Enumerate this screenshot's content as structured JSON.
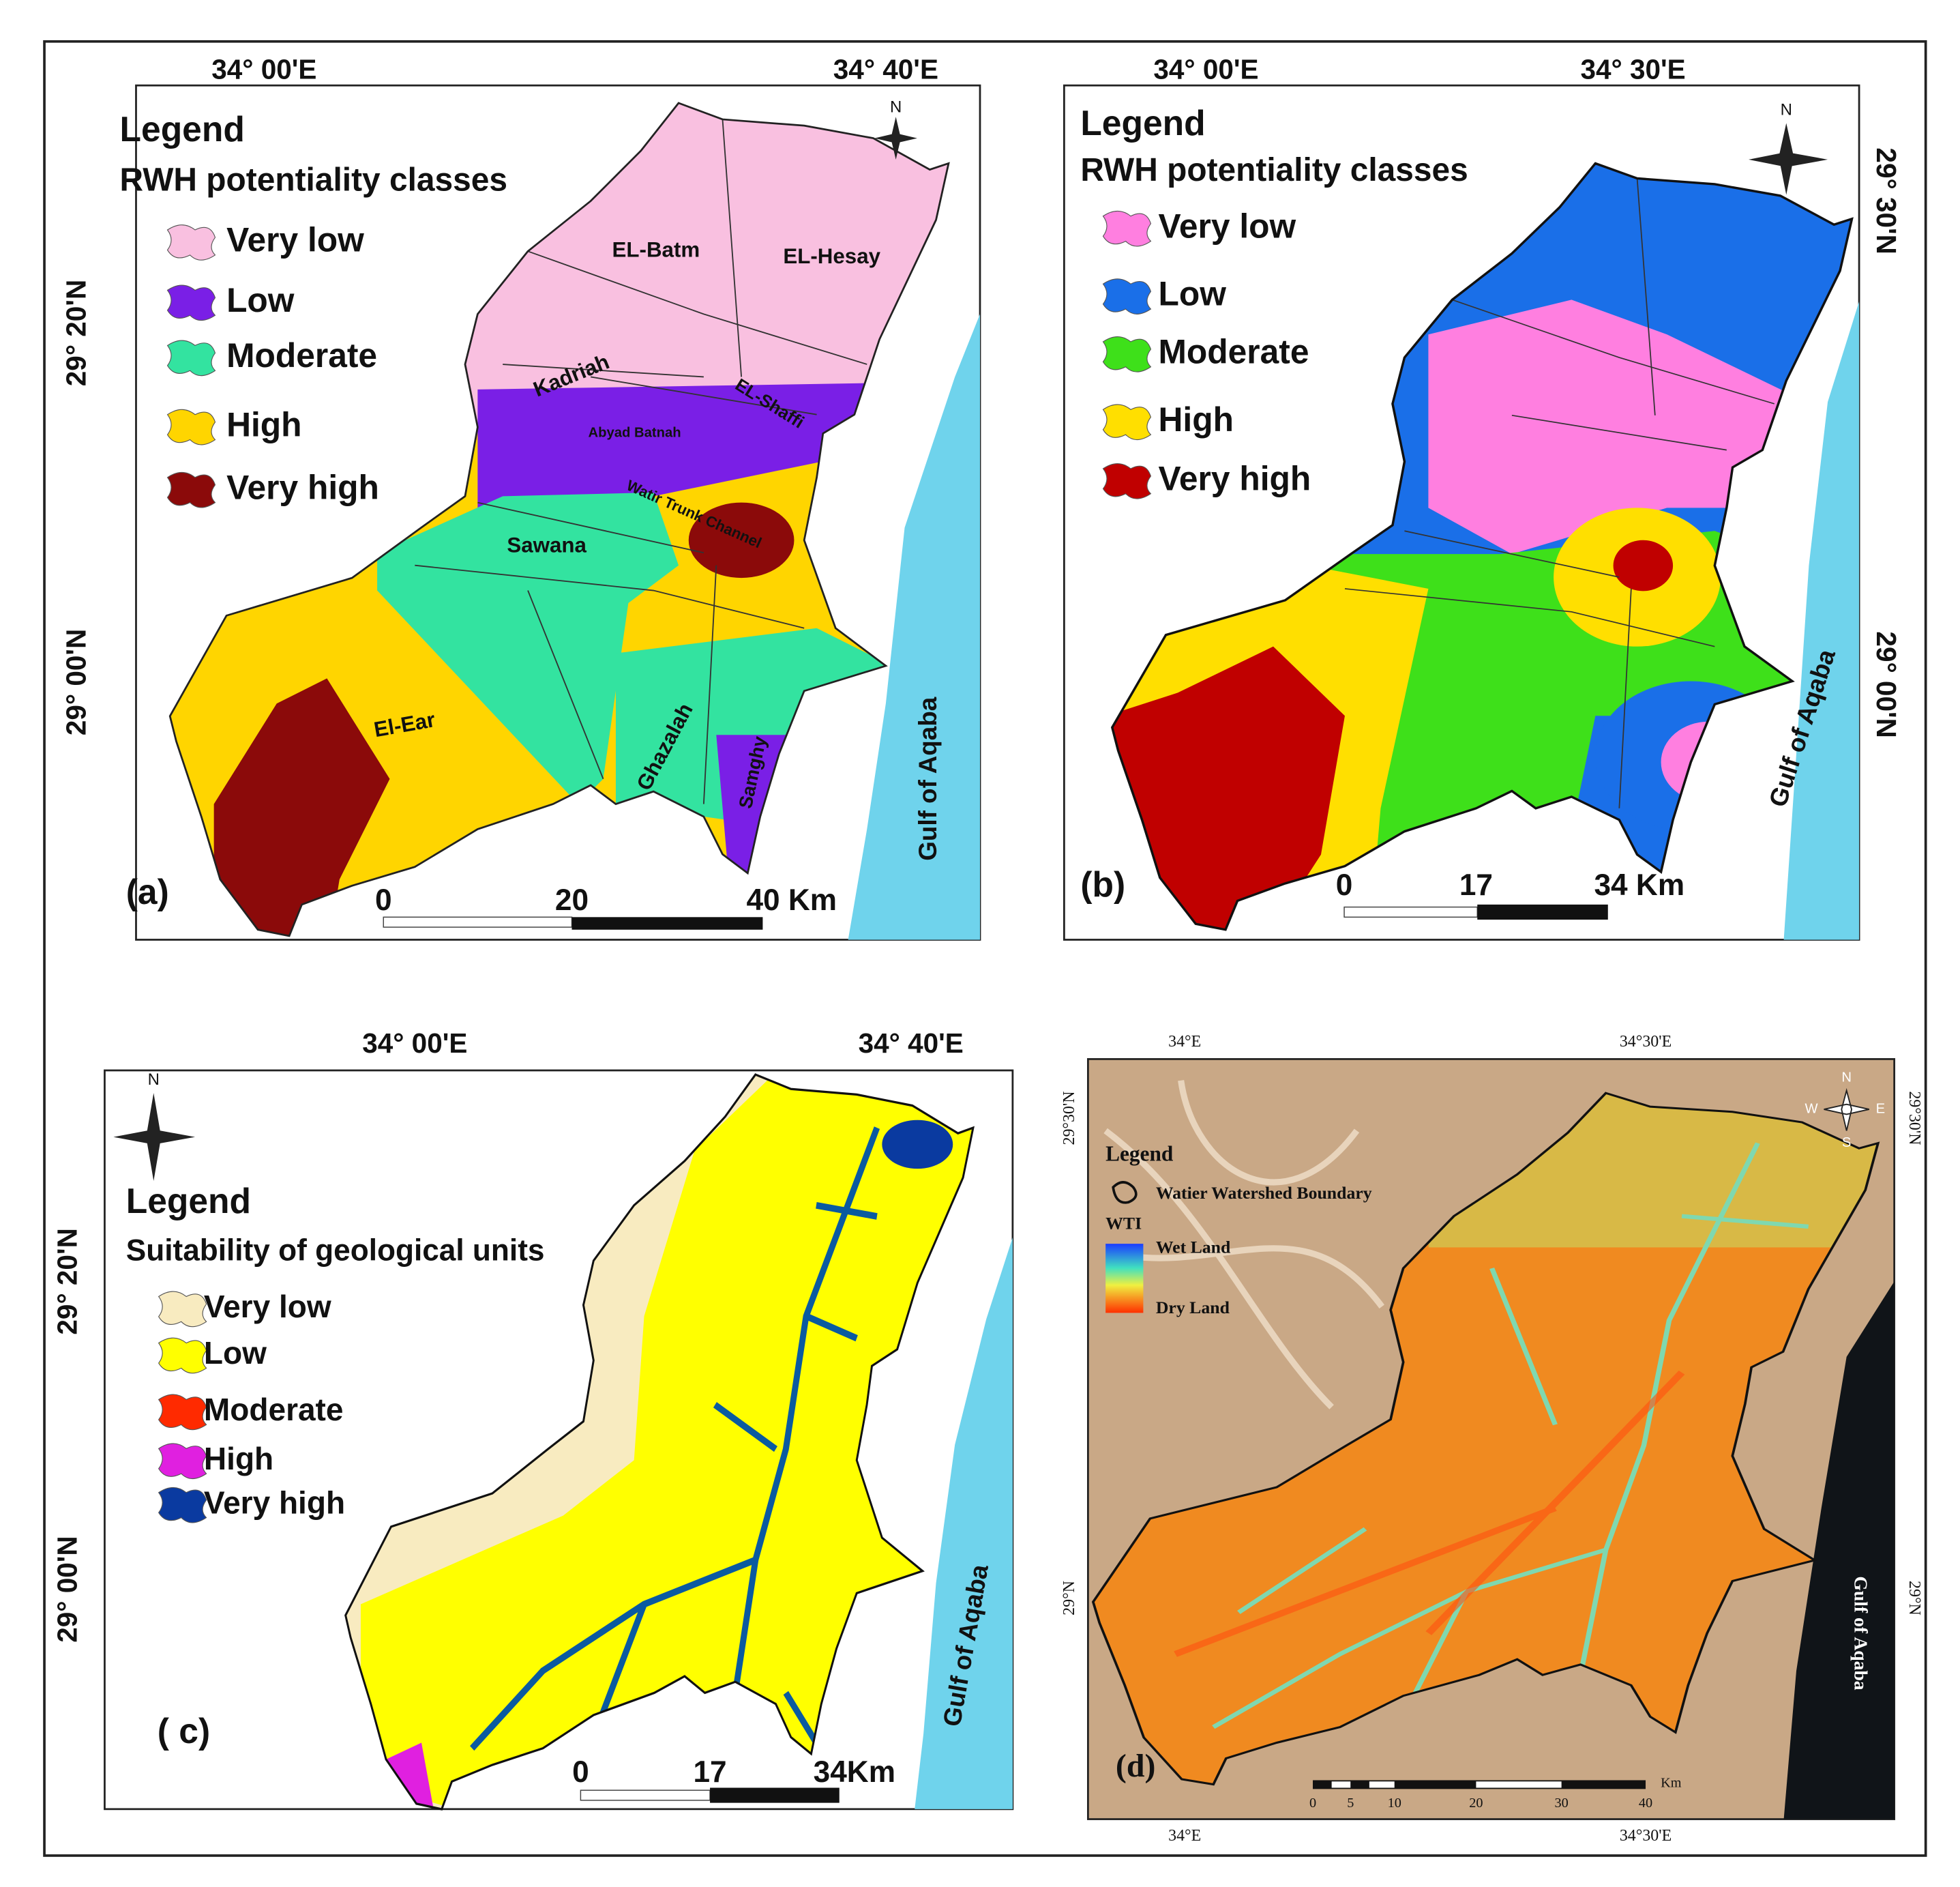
{
  "panels": [
    {
      "label": "(a)",
      "top_ticks": [
        "34° 00'E",
        "34° 40'E"
      ],
      "side_ticks": [
        "29° 20'N",
        "29° 00'N"
      ],
      "legend_title": "Legend",
      "legend_subtitle": "RWH potentiality  classes",
      "legend_items": [
        {
          "label": "Very low",
          "color": "#f9c0e0"
        },
        {
          "label": "Low",
          "color": "#7a1fe6"
        },
        {
          "label": "Moderate",
          "color": "#33e3a0"
        },
        {
          "label": "High",
          "color": "#ffd500"
        },
        {
          "label": "Very high",
          "color": "#8b0a0a"
        }
      ],
      "places": [
        "EL-Batm",
        "EL-Hesay",
        "Kadriah",
        "EL-Shaffi",
        "Abyad Batnah",
        "Watir Trunk Channel",
        "Sawana",
        "El-Ear",
        "Ghazalah",
        "Samghy"
      ],
      "scale_labels": [
        "0",
        "20",
        "40 Km"
      ],
      "sea_label": "Gulf    of    Aqaba",
      "compass": [
        "N"
      ]
    },
    {
      "label": "(b)",
      "top_ticks": [
        "34° 00'E",
        "34° 30'E"
      ],
      "side_ticks": [
        "29° 30'N",
        "29° 00'N"
      ],
      "legend_title": "Legend",
      "legend_subtitle": "RWH potentiality  classes",
      "legend_items": [
        {
          "label": "Very low",
          "color": "#ff7fe0"
        },
        {
          "label": "Low",
          "color": "#1a6fe8"
        },
        {
          "label": "Moderate",
          "color": "#3ee01a"
        },
        {
          "label": "High",
          "color": "#ffdf00"
        },
        {
          "label": "Very high",
          "color": "#c00000"
        }
      ],
      "scale_labels": [
        "0",
        "17",
        "34 Km"
      ],
      "sea_label": "Gulf of Aqaba",
      "compass": [
        "N"
      ]
    },
    {
      "label": "( c)",
      "top_ticks": [
        "34° 00'E",
        "34° 40'E"
      ],
      "side_ticks": [
        "29° 20'N",
        "29° 00'N"
      ],
      "legend_title": "Legend",
      "legend_subtitle": "Suitability of geological units",
      "legend_items": [
        {
          "label": "Very low",
          "color": "#f8ebc0"
        },
        {
          "label": "Low",
          "color": "#ffff00"
        },
        {
          "label": "Moderate",
          "color": "#ff2a00"
        },
        {
          "label": "High",
          "color": "#e020e0"
        },
        {
          "label": "Very high",
          "color": "#0a3aa0"
        }
      ],
      "scale_labels": [
        "0",
        "17",
        "34Km"
      ],
      "sea_label": "Gulf    of    Aqaba",
      "compass": [
        "N"
      ]
    },
    {
      "label": "(d)",
      "top_ticks": [
        "34°E",
        "34°30'E"
      ],
      "bottom_ticks": [
        "34°E",
        "34°30'E"
      ],
      "side_ticks": [
        "29°30'N",
        "29°N"
      ],
      "legend_title": "Legend",
      "boundary_label": "Watier Watershed Boundary",
      "index_label": "WTI",
      "wet_label": "Wet Land",
      "dry_label": "Dry Land",
      "scale_labels": [
        "0",
        "5",
        "10",
        "20",
        "30",
        "40"
      ],
      "scale_unit": "Km",
      "sea_label": "Gulf    of    Aqaba",
      "compass": [
        "N",
        "W",
        "E",
        "S"
      ]
    }
  ]
}
